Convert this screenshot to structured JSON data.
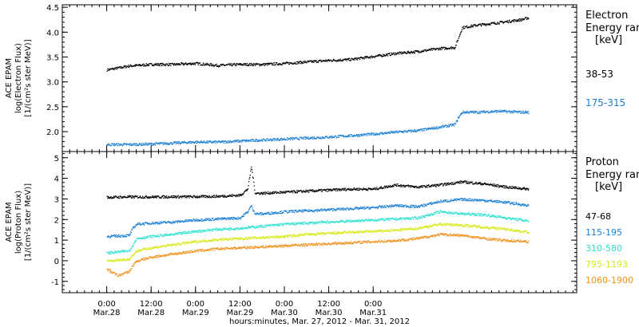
{
  "chart_data": [
    {
      "type": "scatter",
      "panel": "electron",
      "ylabel_lines": [
        "ACE EPAM",
        "log(Electron Flux)",
        "[1/(cm²s ster MeV)]"
      ],
      "ylim": [
        1.6,
        4.55
      ],
      "yticks": [
        "2.0",
        "2.5",
        "3.0",
        "3.5",
        "4.0",
        "4.5"
      ],
      "legend_title": [
        "Electron",
        "Energy ran",
        "[keV]"
      ],
      "series": [
        {
          "name": "38-53",
          "color": "#000000",
          "x": [
            0,
            6,
            12,
            18,
            24,
            30,
            36,
            42,
            48,
            54,
            60,
            66,
            72,
            78,
            84,
            90,
            94,
            95,
            96,
            100,
            106,
            112,
            114
          ],
          "y": [
            3.25,
            3.33,
            3.36,
            3.36,
            3.38,
            3.34,
            3.36,
            3.36,
            3.38,
            3.41,
            3.44,
            3.46,
            3.52,
            3.58,
            3.62,
            3.68,
            3.7,
            3.9,
            4.1,
            4.15,
            4.2,
            4.26,
            4.3
          ]
        },
        {
          "name": "175-315",
          "color": "#1a7fd4",
          "x": [
            0,
            6,
            12,
            18,
            24,
            30,
            36,
            42,
            48,
            54,
            60,
            66,
            72,
            78,
            84,
            90,
            94,
            95,
            96,
            100,
            106,
            112,
            114
          ],
          "y": [
            1.75,
            1.75,
            1.76,
            1.78,
            1.8,
            1.8,
            1.82,
            1.84,
            1.86,
            1.88,
            1.9,
            1.93,
            1.96,
            2.0,
            2.03,
            2.1,
            2.15,
            2.3,
            2.4,
            2.4,
            2.42,
            2.4,
            2.4
          ]
        }
      ]
    },
    {
      "type": "scatter",
      "panel": "proton",
      "ylabel_lines": [
        "ACE EPAM",
        "log(Proton Flux)",
        "[1/(cm²s ster MeV)]"
      ],
      "ylim": [
        -1.55,
        5.3
      ],
      "yticks": [
        "-1",
        "0",
        "1",
        "2",
        "3",
        "4",
        "5"
      ],
      "legend_title": [
        "Proton",
        "Energy ran",
        "[keV]"
      ],
      "series": [
        {
          "name": "47-68",
          "color": "#000000",
          "x": [
            0,
            6,
            12,
            18,
            24,
            30,
            36,
            38,
            39,
            40,
            42,
            48,
            54,
            60,
            66,
            72,
            78,
            84,
            90,
            96,
            102,
            108,
            114
          ],
          "y": [
            3.1,
            3.12,
            3.12,
            3.13,
            3.13,
            3.15,
            3.2,
            3.5,
            4.6,
            3.3,
            3.3,
            3.35,
            3.4,
            3.45,
            3.5,
            3.5,
            3.7,
            3.6,
            3.7,
            3.85,
            3.75,
            3.6,
            3.5
          ]
        },
        {
          "name": "115-195",
          "color": "#1a7fd4",
          "x": [
            0,
            6,
            7,
            8,
            12,
            18,
            24,
            30,
            36,
            38,
            39,
            40,
            42,
            48,
            54,
            60,
            66,
            72,
            78,
            84,
            90,
            96,
            102,
            108,
            114
          ],
          "y": [
            1.2,
            1.25,
            1.6,
            1.8,
            1.85,
            1.9,
            2.0,
            2.05,
            2.1,
            2.4,
            2.7,
            2.3,
            2.3,
            2.4,
            2.45,
            2.5,
            2.55,
            2.6,
            2.7,
            2.65,
            2.9,
            3.0,
            2.95,
            2.85,
            2.7
          ]
        },
        {
          "name": "310-580",
          "color": "#2ee0d0",
          "x": [
            0,
            6,
            7,
            8,
            12,
            18,
            24,
            30,
            36,
            42,
            48,
            54,
            60,
            66,
            72,
            78,
            84,
            90,
            96,
            102,
            108,
            114
          ],
          "y": [
            0.4,
            0.5,
            0.8,
            1.1,
            1.2,
            1.3,
            1.45,
            1.55,
            1.6,
            1.7,
            1.8,
            1.85,
            1.9,
            1.95,
            2.0,
            2.05,
            2.1,
            2.4,
            2.3,
            2.25,
            2.1,
            1.95
          ]
        },
        {
          "name": "795-1193",
          "color": "#d8e818",
          "x": [
            0,
            6,
            7,
            8,
            12,
            18,
            24,
            30,
            36,
            42,
            48,
            54,
            60,
            66,
            72,
            78,
            84,
            90,
            96,
            102,
            108,
            114
          ],
          "y": [
            0.0,
            0.1,
            0.3,
            0.5,
            0.65,
            0.8,
            0.95,
            1.05,
            1.1,
            1.15,
            1.2,
            1.3,
            1.35,
            1.4,
            1.45,
            1.5,
            1.6,
            1.8,
            1.75,
            1.65,
            1.55,
            1.4
          ]
        },
        {
          "name": "1060-1900",
          "color": "#f0901a",
          "x": [
            0,
            3,
            6,
            7,
            8,
            12,
            18,
            24,
            30,
            36,
            42,
            48,
            54,
            60,
            66,
            72,
            78,
            84,
            90,
            96,
            102,
            108,
            114
          ],
          "y": [
            -0.4,
            -0.7,
            -0.5,
            -0.2,
            0.0,
            0.2,
            0.35,
            0.5,
            0.6,
            0.65,
            0.7,
            0.75,
            0.8,
            0.85,
            0.9,
            0.95,
            1.0,
            1.1,
            1.3,
            1.25,
            1.1,
            1.0,
            0.95
          ]
        }
      ]
    }
  ],
  "x_axis": {
    "xlim": [
      -12,
      127
    ],
    "ticks": [
      {
        "x": 0,
        "time": "0:00",
        "date": "Mar.28"
      },
      {
        "x": 12,
        "time": "12:00",
        "date": "Mar.28"
      },
      {
        "x": 24,
        "time": "0:00",
        "date": "Mar.29"
      },
      {
        "x": 36,
        "time": "12:00",
        "date": "Mar.29"
      },
      {
        "x": 48,
        "time": "0:00",
        "date": "Mar.30"
      },
      {
        "x": 60,
        "time": "12:00",
        "date": "Mar.30"
      },
      {
        "x": 72,
        "time": "0:00",
        "date": "Mar.31"
      }
    ],
    "label": "hours:minutes, Mar. 27, 2012 - Mar. 31, 2012"
  }
}
